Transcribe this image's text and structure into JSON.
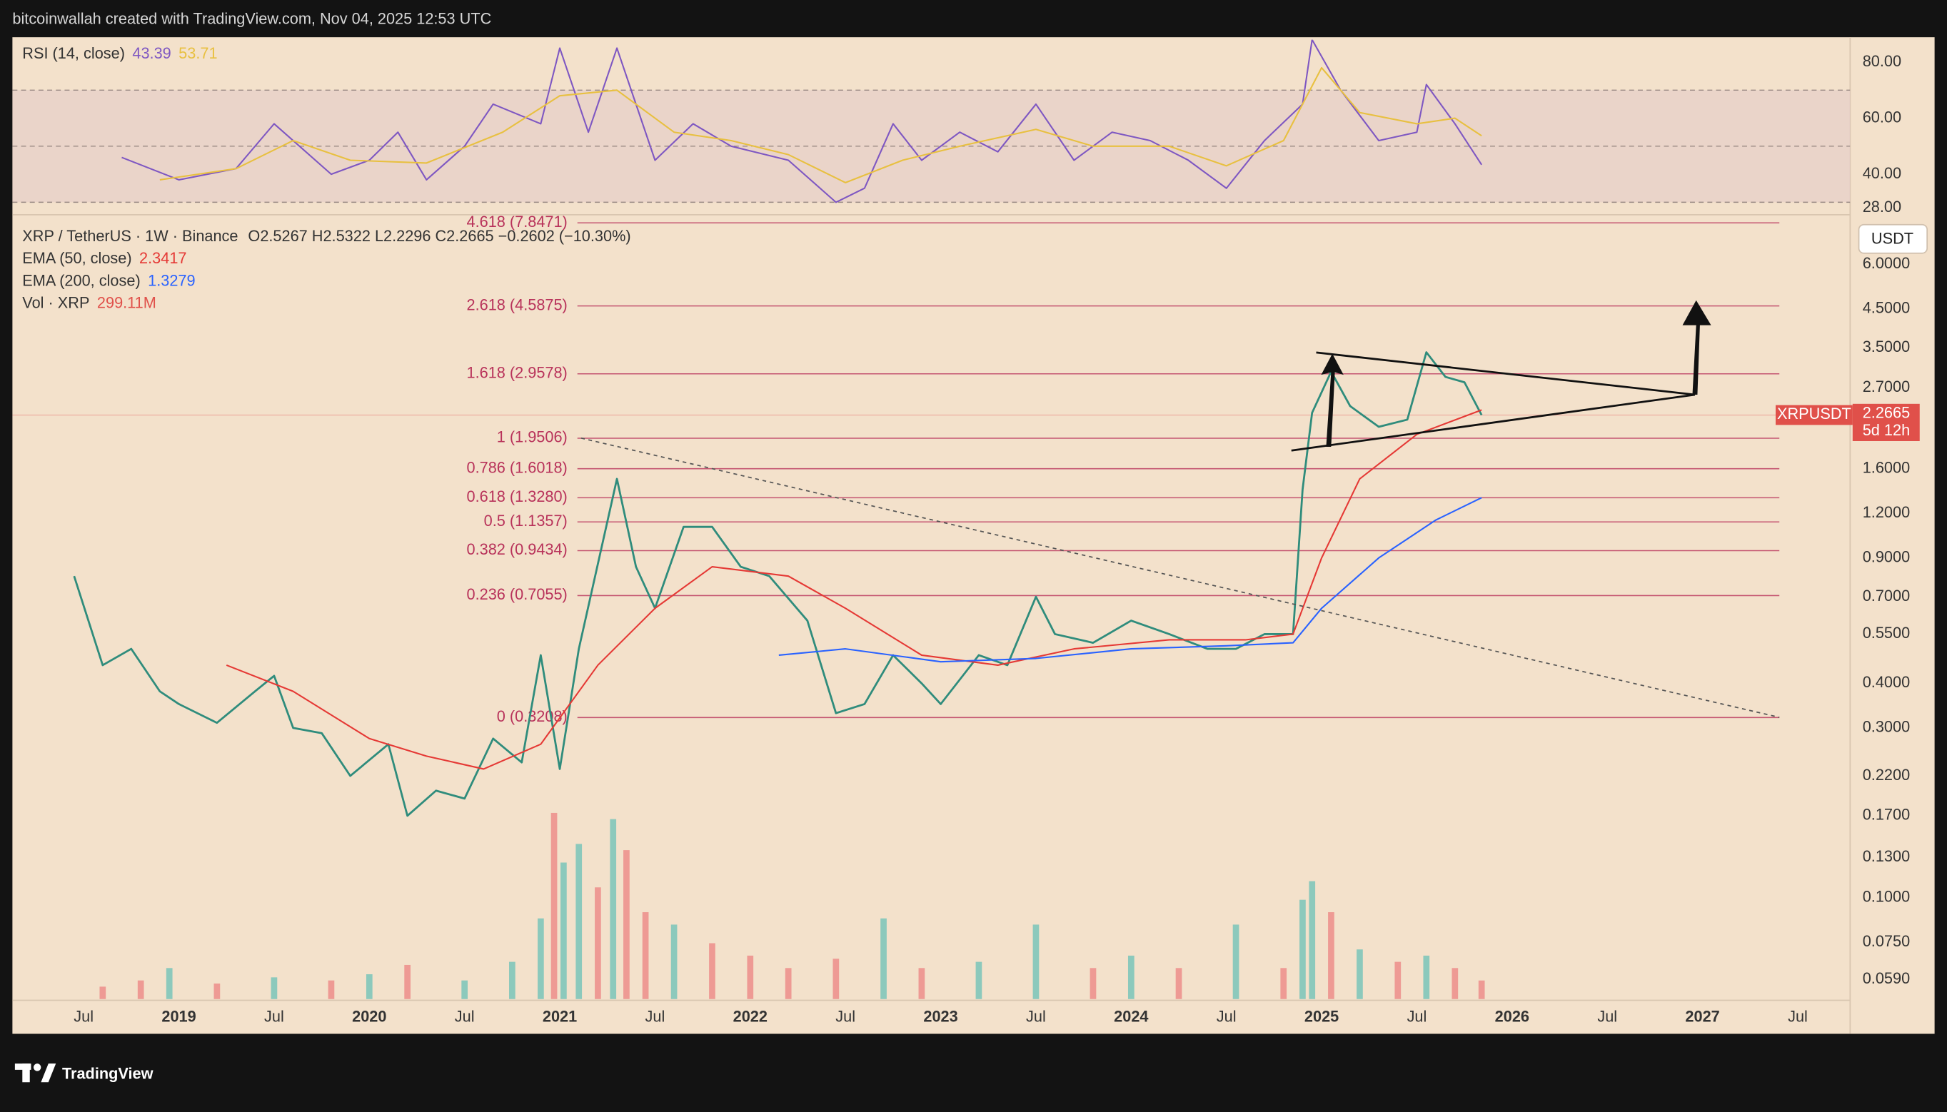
{
  "header": {
    "credit": "bitcoinwallah created with TradingView.com, Nov 04, 2025 12:53 UTC"
  },
  "footer": {
    "brand": "TradingView"
  },
  "chart_data": [
    {
      "type": "line",
      "title": "RSI (14, close)",
      "ylim": [
        26,
        88
      ],
      "yticks": [
        {
          "value": 80,
          "label": "80.00"
        },
        {
          "value": 60,
          "label": "60.00"
        },
        {
          "value": 40,
          "label": "40.00"
        },
        {
          "value": 28,
          "label": "28.00"
        }
      ],
      "band": [
        30,
        70
      ],
      "middle": 50,
      "series": [
        {
          "color": "#7e57c2",
          "x": [
            2018.7,
            2019.0,
            2019.3,
            2019.5,
            2019.8,
            2020.0,
            2020.15,
            2020.3,
            2020.5,
            2020.65,
            2020.9,
            2021.0,
            2021.15,
            2021.3,
            2021.5,
            2021.7,
            2021.9,
            2022.2,
            2022.45,
            2022.6,
            2022.75,
            2022.9,
            2023.1,
            2023.3,
            2023.5,
            2023.7,
            2023.9,
            2024.1,
            2024.3,
            2024.5,
            2024.7,
            2024.9,
            2024.95,
            2025.1,
            2025.3,
            2025.5,
            2025.55,
            2025.7,
            2025.84
          ],
          "values": [
            46,
            38,
            42,
            58,
            40,
            45,
            55,
            38,
            50,
            65,
            58,
            85,
            55,
            85,
            45,
            58,
            50,
            45,
            30,
            35,
            58,
            45,
            55,
            48,
            65,
            45,
            55,
            52,
            45,
            35,
            52,
            65,
            88,
            70,
            52,
            55,
            72,
            58,
            43.39
          ]
        },
        {
          "color": "#e8c040",
          "x": [
            2018.9,
            2019.3,
            2019.6,
            2019.9,
            2020.3,
            2020.7,
            2021.0,
            2021.3,
            2021.6,
            2021.9,
            2022.2,
            2022.5,
            2022.8,
            2023.1,
            2023.5,
            2023.8,
            2024.2,
            2024.5,
            2024.8,
            2025.0,
            2025.2,
            2025.5,
            2025.7,
            2025.84
          ],
          "values": [
            38,
            42,
            52,
            45,
            44,
            55,
            68,
            70,
            55,
            52,
            47,
            37,
            45,
            50,
            56,
            50,
            50,
            43,
            52,
            78,
            62,
            58,
            60,
            53.71
          ]
        }
      ]
    },
    {
      "type": "line",
      "yscale": "log",
      "ohlc_label": "O2.5267  H2.5322  L2.2296  C2.2665  −0.2602 (−10.30%)",
      "currency": "USDT",
      "symbol_tag": "XRPUSDT",
      "countdown": "5d 12h",
      "xlim": [
        2018.126,
        2027.775
      ],
      "xticks": [
        {
          "value": 2018.5,
          "label": "Jul"
        },
        2019,
        {
          "value": 2019.5,
          "label": "Jul"
        },
        2020,
        {
          "value": 2020.5,
          "label": "Jul"
        },
        2021,
        {
          "value": 2021.5,
          "label": "Jul"
        },
        2022,
        {
          "value": 2022.5,
          "label": "Jul"
        },
        2023,
        {
          "value": 2023.5,
          "label": "Jul"
        },
        2024,
        {
          "value": 2024.5,
          "label": "Jul"
        },
        2025,
        {
          "value": 2025.5,
          "label": "Jul"
        },
        2026,
        {
          "value": 2026.5,
          "label": "Jul"
        },
        2027,
        {
          "value": 2027.5,
          "label": "Jul"
        }
      ],
      "ylim": [
        0.052,
        8.14
      ],
      "yticks": [
        {
          "value": 6,
          "label": "6.0000"
        },
        {
          "value": 4.5,
          "label": "4.5000"
        },
        {
          "value": 3.5,
          "label": "3.5000"
        },
        {
          "value": 2.7,
          "label": "2.7000"
        },
        {
          "value": 1.6,
          "label": "1.6000"
        },
        {
          "value": 1.2,
          "label": "1.2000"
        },
        {
          "value": 0.9,
          "label": "0.9000"
        },
        {
          "value": 0.7,
          "label": "0.7000"
        },
        {
          "value": 0.55,
          "label": "0.5500"
        },
        {
          "value": 0.4,
          "label": "0.4000"
        },
        {
          "value": 0.3,
          "label": "0.3000"
        },
        {
          "value": 0.22,
          "label": "0.2200"
        },
        {
          "value": 0.17,
          "label": "0.1700"
        },
        {
          "value": 0.13,
          "label": "0.1300"
        },
        {
          "value": 0.1,
          "label": "0.1000"
        },
        {
          "value": 0.075,
          "label": "0.0750"
        },
        {
          "value": 0.059,
          "label": "0.0590"
        }
      ],
      "fib_levels": [
        {
          "label": "4.618 (7.8471)",
          "value": 7.8471
        },
        {
          "label": "2.618 (4.5875)",
          "value": 4.5875
        },
        {
          "label": "1.618 (2.9578)",
          "value": 2.9578
        },
        {
          "label": "1 (1.9506)",
          "value": 1.9506
        },
        {
          "label": "0.786 (1.6018)",
          "value": 1.6018
        },
        {
          "label": "0.618 (1.3280)",
          "value": 1.328
        },
        {
          "label": "0.5 (1.1357)",
          "value": 1.1357
        },
        {
          "label": "0.382 (0.9434)",
          "value": 0.9434
        },
        {
          "label": "0.236 (0.7055)",
          "value": 0.7055
        },
        {
          "label": "0 (0.3208)",
          "value": 0.3208
        }
      ],
      "fib_color": "#b8325a",
      "series": [
        {
          "name": "XRP / TetherUS · 1W · Binance",
          "color": "#2f8c7c",
          "x": [
            2018.45,
            2018.6,
            2018.75,
            2018.9,
            2019.0,
            2019.2,
            2019.4,
            2019.5,
            2019.6,
            2019.75,
            2019.9,
            2020.1,
            2020.2,
            2020.35,
            2020.5,
            2020.65,
            2020.8,
            2020.9,
            2021.0,
            2021.1,
            2021.3,
            2021.4,
            2021.5,
            2021.65,
            2021.8,
            2021.95,
            2022.1,
            2022.3,
            2022.45,
            2022.6,
            2022.75,
            2022.9,
            2023.0,
            2023.2,
            2023.35,
            2023.5,
            2023.6,
            2023.8,
            2024.0,
            2024.2,
            2024.4,
            2024.55,
            2024.7,
            2024.85,
            2024.9,
            2024.95,
            2025.05,
            2025.15,
            2025.3,
            2025.45,
            2025.55,
            2025.65,
            2025.75,
            2025.84
          ],
          "values": [
            0.8,
            0.45,
            0.5,
            0.38,
            0.35,
            0.31,
            0.38,
            0.42,
            0.3,
            0.29,
            0.22,
            0.27,
            0.17,
            0.2,
            0.19,
            0.28,
            0.24,
            0.48,
            0.23,
            0.5,
            1.5,
            0.85,
            0.65,
            1.1,
            1.1,
            0.85,
            0.8,
            0.6,
            0.33,
            0.35,
            0.48,
            0.4,
            0.35,
            0.48,
            0.45,
            0.7,
            0.55,
            0.52,
            0.6,
            0.55,
            0.5,
            0.5,
            0.55,
            0.55,
            1.4,
            2.3,
            3.0,
            2.4,
            2.1,
            2.2,
            3.4,
            2.9,
            2.8,
            2.2665
          ]
        },
        {
          "name": "EMA (50, close)",
          "color": "#e53935",
          "x": [
            2019.25,
            2019.6,
            2020.0,
            2020.3,
            2020.6,
            2020.9,
            2021.2,
            2021.5,
            2021.8,
            2022.2,
            2022.5,
            2022.9,
            2023.3,
            2023.7,
            2024.2,
            2024.6,
            2024.85,
            2025.0,
            2025.2,
            2025.5,
            2025.84
          ],
          "values": [
            0.45,
            0.38,
            0.28,
            0.25,
            0.23,
            0.27,
            0.45,
            0.65,
            0.85,
            0.8,
            0.65,
            0.48,
            0.45,
            0.5,
            0.53,
            0.53,
            0.55,
            0.9,
            1.5,
            2.0,
            2.3417
          ]
        },
        {
          "name": "EMA (200, close)",
          "color": "#2962ff",
          "x": [
            2022.15,
            2022.5,
            2023.0,
            2023.5,
            2024.0,
            2024.5,
            2024.85,
            2025.0,
            2025.3,
            2025.6,
            2025.84
          ],
          "values": [
            0.48,
            0.5,
            0.46,
            0.47,
            0.5,
            0.51,
            0.52,
            0.65,
            0.9,
            1.15,
            1.3279
          ]
        }
      ]
    },
    {
      "type": "bar",
      "name": "Vol · XRP",
      "last_value_label": "299.11M",
      "ylim": [
        0,
        12600
      ],
      "x": [
        2018.6,
        2018.8,
        2018.95,
        2019.2,
        2019.5,
        2019.8,
        2020.0,
        2020.2,
        2020.5,
        2020.75,
        2020.9,
        2020.97,
        2021.02,
        2021.1,
        2021.2,
        2021.28,
        2021.35,
        2021.45,
        2021.6,
        2021.8,
        2022.0,
        2022.2,
        2022.45,
        2022.7,
        2022.9,
        2023.2,
        2023.5,
        2023.8,
        2024.0,
        2024.25,
        2024.55,
        2024.8,
        2024.9,
        2024.95,
        2025.05,
        2025.2,
        2025.4,
        2025.55,
        2025.7,
        2025.84
      ],
      "values": [
        200,
        300,
        500,
        250,
        350,
        300,
        400,
        550,
        300,
        600,
        1300,
        3000,
        2200,
        2500,
        1800,
        2900,
        2400,
        1400,
        1200,
        900,
        700,
        500,
        650,
        1300,
        500,
        600,
        1200,
        500,
        700,
        500,
        1200,
        500,
        1600,
        1900,
        1400,
        800,
        600,
        700,
        500,
        299.11
      ],
      "colors": [
        "#ee9a94",
        "#ee9a94",
        "#8cc9bc",
        "#ee9a94",
        "#8cc9bc",
        "#ee9a94",
        "#8cc9bc",
        "#ee9a94",
        "#8cc9bc",
        "#8cc9bc",
        "#8cc9bc",
        "#ee9a94",
        "#8cc9bc",
        "#8cc9bc",
        "#ee9a94",
        "#8cc9bc",
        "#ee9a94",
        "#ee9a94",
        "#8cc9bc",
        "#ee9a94",
        "#ee9a94",
        "#ee9a94",
        "#ee9a94",
        "#8cc9bc",
        "#ee9a94",
        "#8cc9bc",
        "#8cc9bc",
        "#ee9a94",
        "#8cc9bc",
        "#ee9a94",
        "#8cc9bc",
        "#ee9a94",
        "#8cc9bc",
        "#8cc9bc",
        "#ee9a94",
        "#8cc9bc",
        "#ee9a94",
        "#8cc9bc",
        "#ee9a94",
        "#ee9a94"
      ]
    }
  ]
}
